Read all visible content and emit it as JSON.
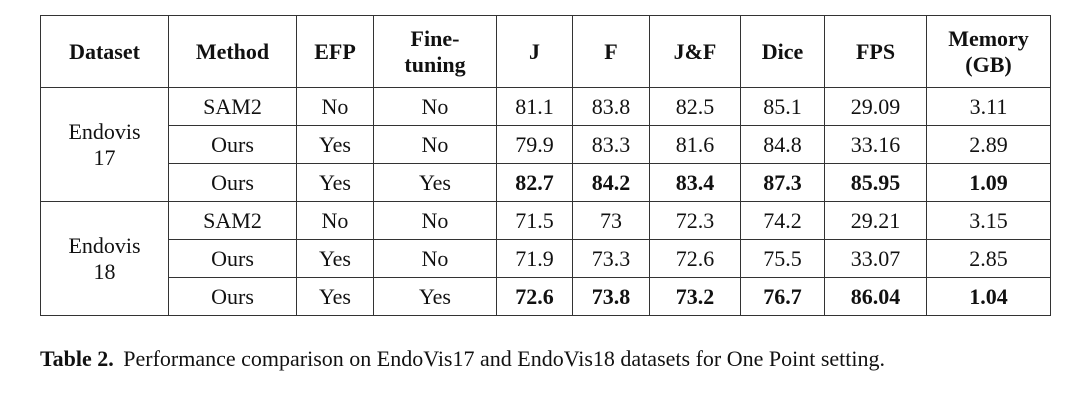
{
  "table": {
    "header": [
      "Dataset",
      "Method",
      "EFP",
      "Fine-tuning",
      "J",
      "F",
      "J&F",
      "Dice",
      "FPS",
      "Memory (GB)"
    ],
    "groups": [
      {
        "dataset": "Endovis 17",
        "rows": [
          [
            "SAM2",
            "No",
            "No",
            "81.1",
            "83.8",
            "82.5",
            "85.1",
            "29.09",
            "3.11"
          ],
          [
            "Ours",
            "Yes",
            "No",
            "79.9",
            "83.3",
            "81.6",
            "84.8",
            "33.16",
            "2.89"
          ],
          [
            "Ours",
            "Yes",
            "Yes",
            "82.7",
            "84.2",
            "83.4",
            "87.3",
            "85.95",
            "1.09"
          ]
        ]
      },
      {
        "dataset": "Endovis 18",
        "rows": [
          [
            "SAM2",
            "No",
            "No",
            "71.5",
            "73",
            "72.3",
            "74.2",
            "29.21",
            "3.15"
          ],
          [
            "Ours",
            "Yes",
            "No",
            "71.9",
            "73.3",
            "72.6",
            "75.5",
            "33.07",
            "2.85"
          ],
          [
            "Ours",
            "Yes",
            "Yes",
            "72.6",
            "73.8",
            "73.2",
            "76.7",
            "86.04",
            "1.04"
          ]
        ]
      }
    ]
  },
  "caption": {
    "label": "Table 2.",
    "text": "Performance comparison on EndoVis17 and EndoVis18 datasets for One Point setting."
  }
}
